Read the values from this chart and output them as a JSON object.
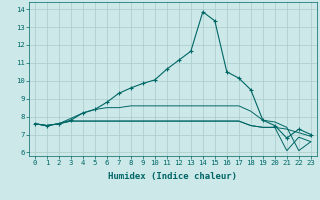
{
  "xlabel": "Humidex (Indice chaleur)",
  "bg_color": "#cce8e8",
  "line_color": "#006666",
  "grid_color": "#aacccc",
  "xlim": [
    -0.5,
    23.5
  ],
  "ylim": [
    5.8,
    14.4
  ],
  "yticks": [
    6,
    7,
    8,
    9,
    10,
    11,
    12,
    13,
    14
  ],
  "xticks": [
    0,
    1,
    2,
    3,
    4,
    5,
    6,
    7,
    8,
    9,
    10,
    11,
    12,
    13,
    14,
    15,
    16,
    17,
    18,
    19,
    20,
    21,
    22,
    23
  ],
  "line1_x": [
    0,
    1,
    2,
    3,
    4,
    5,
    6,
    7,
    8,
    9,
    10,
    11,
    12,
    13,
    14,
    15,
    16,
    17,
    18,
    19,
    20,
    21,
    22,
    23
  ],
  "line1_y": [
    7.6,
    7.5,
    7.6,
    7.8,
    8.2,
    8.4,
    8.8,
    9.3,
    9.6,
    9.85,
    10.05,
    10.65,
    11.15,
    11.65,
    13.85,
    13.35,
    10.5,
    10.15,
    9.5,
    7.8,
    7.5,
    6.8,
    7.3,
    7.0
  ],
  "line2_x": [
    0,
    1,
    2,
    3,
    4,
    5,
    6,
    7,
    8,
    9,
    10,
    11,
    12,
    13,
    14,
    15,
    16,
    17,
    18,
    19,
    20,
    21,
    22,
    23
  ],
  "line2_y": [
    7.6,
    7.5,
    7.6,
    7.75,
    7.75,
    7.75,
    7.75,
    7.75,
    7.75,
    7.75,
    7.75,
    7.75,
    7.75,
    7.75,
    7.75,
    7.75,
    7.75,
    7.75,
    7.5,
    7.4,
    7.4,
    7.3,
    7.1,
    6.9
  ],
  "line3_x": [
    0,
    1,
    2,
    3,
    4,
    5,
    6,
    7,
    8,
    9,
    10,
    11,
    12,
    13,
    14,
    15,
    16,
    17,
    18,
    19,
    20,
    21,
    22,
    23
  ],
  "line3_y": [
    7.6,
    7.5,
    7.6,
    7.75,
    7.75,
    7.75,
    7.75,
    7.75,
    7.75,
    7.75,
    7.75,
    7.75,
    7.75,
    7.75,
    7.75,
    7.75,
    7.75,
    7.75,
    7.5,
    7.4,
    7.4,
    6.1,
    6.85,
    6.6
  ],
  "line4_x": [
    0,
    1,
    2,
    3,
    4,
    5,
    6,
    7,
    8,
    9,
    10,
    11,
    12,
    13,
    14,
    15,
    16,
    17,
    18,
    19,
    20,
    21,
    22,
    23
  ],
  "line4_y": [
    7.6,
    7.5,
    7.6,
    7.9,
    8.2,
    8.4,
    8.5,
    8.5,
    8.6,
    8.6,
    8.6,
    8.6,
    8.6,
    8.6,
    8.6,
    8.6,
    8.6,
    8.6,
    8.3,
    7.8,
    7.7,
    7.4,
    6.1,
    6.6
  ],
  "xlabel_fontsize": 6.5,
  "tick_fontsize": 5.2
}
